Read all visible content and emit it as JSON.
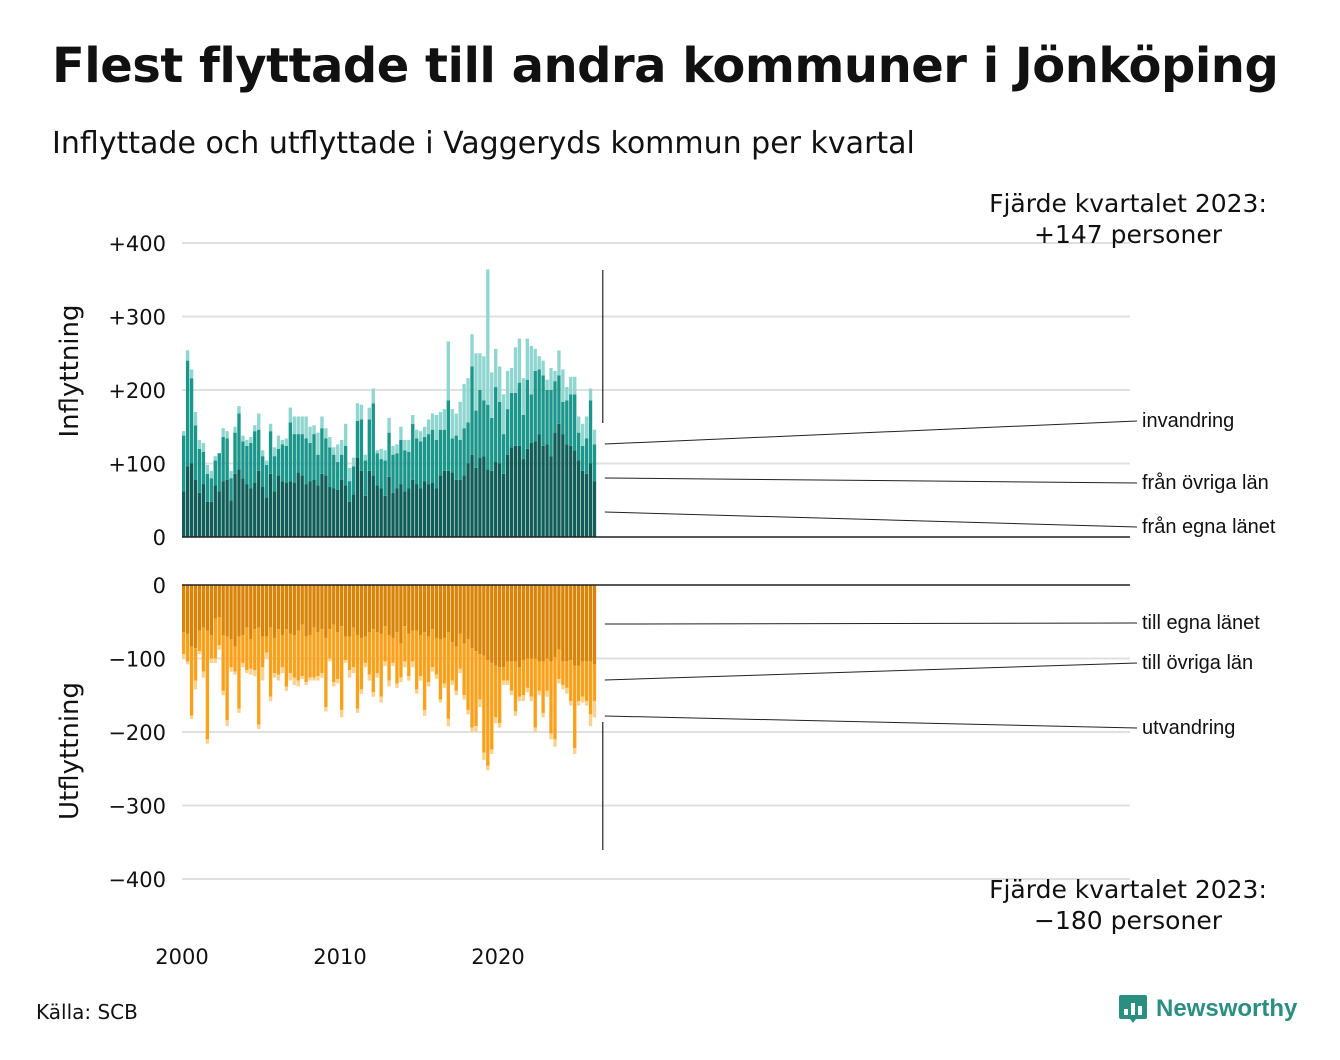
{
  "title": "Flest flyttade till andra kommuner i Jönköping",
  "subtitle": "Inflyttade och utflyttade i Vaggeryds kommun per kvartal",
  "source": "Källa: SCB",
  "brand": "Newsworthy",
  "colors": {
    "in_egna": "#115e59",
    "in_ovriga": "#1a968a",
    "in_invandring": "#8ed6cf",
    "ut_egna": "#d98406",
    "ut_ovriga": "#f9a11b",
    "ut_utvandring": "#fbd28d",
    "grid": "#e0e0e0",
    "brand": "#2a8f80"
  },
  "chart_data": {
    "type": "bar",
    "stacked": true,
    "x_start": 2000.0,
    "x_step": 0.25,
    "x_ticks": [
      "2000",
      "2010",
      "2020"
    ],
    "upper": {
      "ylabel": "Inflyttning",
      "ylim": [
        0,
        400
      ],
      "ticks": [
        "0",
        "+100",
        "+200",
        "+300",
        "+400"
      ],
      "series": [
        {
          "name": "från egna länet",
          "values": [
            62,
            96,
            100,
            78,
            60,
            72,
            48,
            48,
            70,
            62,
            76,
            78,
            50,
            86,
            92,
            80,
            72,
            66,
            74,
            90,
            68,
            54,
            86,
            62,
            84,
            76,
            74,
            76,
            74,
            88,
            84,
            72,
            76,
            78,
            70,
            86,
            84,
            68,
            66,
            64,
            78,
            70,
            48,
            58,
            108,
            90,
            56,
            90,
            84,
            70,
            66,
            56,
            82,
            60,
            66,
            72,
            62,
            66,
            78,
            72,
            66,
            76,
            72,
            74,
            66,
            84,
            90,
            90,
            88,
            78,
            78,
            84,
            100,
            112,
            94,
            108,
            110,
            92,
            90,
            102,
            100,
            86,
            112,
            122,
            124,
            124,
            106,
            120,
            128,
            130,
            140,
            124,
            126,
            110,
            142,
            154,
            140,
            126,
            124,
            118,
            104,
            90,
            86,
            100,
            76
          ]
        },
        {
          "name": "från övriga län",
          "values": [
            76,
            144,
            116,
            74,
            60,
            44,
            38,
            32,
            34,
            52,
            60,
            56,
            30,
            56,
            76,
            50,
            52,
            62,
            70,
            56,
            42,
            44,
            58,
            48,
            36,
            50,
            50,
            80,
            66,
            52,
            56,
            62,
            52,
            62,
            42,
            62,
            50,
            54,
            46,
            38,
            34,
            54,
            28,
            38,
            50,
            70,
            48,
            70,
            98,
            44,
            40,
            48,
            60,
            52,
            48,
            60,
            56,
            50,
            76,
            62,
            64,
            60,
            68,
            72,
            66,
            62,
            56,
            96,
            46,
            60,
            54,
            64,
            56,
            120,
            78,
            92,
            76,
            88,
            72,
            102,
            84,
            54,
            62,
            74,
            72,
            86,
            60,
            94,
            66,
            96,
            88,
            96,
            74,
            90,
            70,
            66,
            44,
            60,
            70,
            76,
            38,
            34,
            48,
            86,
            50
          ]
        },
        {
          "name": "invandring",
          "values": [
            6,
            14,
            12,
            18,
            12,
            12,
            12,
            10,
            6,
            0,
            12,
            10,
            10,
            8,
            10,
            8,
            8,
            8,
            8,
            22,
            8,
            6,
            10,
            12,
            18,
            6,
            10,
            20,
            24,
            24,
            24,
            30,
            22,
            12,
            30,
            16,
            14,
            14,
            10,
            24,
            20,
            30,
            18,
            12,
            24,
            20,
            8,
            16,
            20,
            4,
            14,
            14,
            20,
            12,
            12,
            18,
            14,
            16,
            12,
            12,
            14,
            14,
            20,
            22,
            34,
            24,
            28,
            80,
            40,
            30,
            52,
            60,
            60,
            44,
            78,
            50,
            60,
            184,
            62,
            52,
            48,
            54,
            52,
            34,
            62,
            60,
            50,
            56,
            66,
            30,
            18,
            20,
            14,
            30,
            14,
            34,
            44,
            18,
            24,
            24,
            22,
            30,
            30,
            16,
            20
          ]
        }
      ]
    },
    "lower": {
      "ylabel": "Utflyttning",
      "ylim": [
        -400,
        0
      ],
      "ticks": [
        "0",
        "−100",
        "−200",
        "−300",
        "−400"
      ],
      "series": [
        {
          "name": "till egna länet",
          "values": [
            -64,
            -66,
            -84,
            -86,
            -62,
            -58,
            -62,
            -68,
            -46,
            -44,
            -68,
            -70,
            -74,
            -84,
            -70,
            -68,
            -58,
            -74,
            -60,
            -58,
            -70,
            -70,
            -58,
            -72,
            -60,
            -68,
            -60,
            -66,
            -68,
            -62,
            -54,
            -70,
            -68,
            -58,
            -64,
            -60,
            -72,
            -60,
            -54,
            -64,
            -56,
            -70,
            -70,
            -58,
            -68,
            -72,
            -70,
            -64,
            -60,
            -64,
            -66,
            -56,
            -68,
            -72,
            -64,
            -80,
            -56,
            -66,
            -62,
            -62,
            -68,
            -64,
            -70,
            -60,
            -72,
            -74,
            -72,
            -64,
            -78,
            -84,
            -66,
            -80,
            -74,
            -86,
            -90,
            -94,
            -96,
            -102,
            -106,
            -110,
            -112,
            -112,
            -104,
            -104,
            -104,
            -112,
            -102,
            -100,
            -100,
            -100,
            -104,
            -104,
            -100,
            -104,
            -98,
            -88,
            -104,
            -104,
            -102,
            -110,
            -110,
            -104,
            -104,
            -104,
            -108
          ]
        },
        {
          "name": "till övriga län",
          "values": [
            -30,
            -38,
            -94,
            -44,
            -28,
            -60,
            -148,
            -32,
            -54,
            -38,
            -76,
            -114,
            -38,
            -34,
            -98,
            -38,
            -58,
            -40,
            -56,
            -132,
            -42,
            -22,
            -94,
            -48,
            -62,
            -44,
            -78,
            -54,
            -58,
            -68,
            -70,
            -62,
            -58,
            -68,
            -60,
            -60,
            -94,
            -40,
            -78,
            -64,
            -114,
            -32,
            -46,
            -54,
            -100,
            -70,
            -36,
            -58,
            -86,
            -56,
            -86,
            -48,
            -62,
            -34,
            -70,
            -46,
            -48,
            -58,
            -42,
            -80,
            -56,
            -106,
            -62,
            -52,
            -50,
            -82,
            -62,
            -118,
            -52,
            -60,
            -48,
            -70,
            -96,
            -108,
            -102,
            -62,
            -132,
            -144,
            -118,
            -70,
            -76,
            -18,
            -26,
            -40,
            -68,
            -40,
            -48,
            -40,
            -52,
            -94,
            -40,
            -70,
            -44,
            -98,
            -112,
            -40,
            -32,
            -36,
            -56,
            -112,
            -48,
            -48,
            -54,
            -72,
            -50
          ]
        },
        {
          "name": "utvandring",
          "values": [
            -6,
            -4,
            -4,
            -12,
            -4,
            -8,
            -6,
            -6,
            -6,
            -6,
            -6,
            -8,
            -6,
            -4,
            -6,
            -6,
            -4,
            -8,
            -8,
            -6,
            -18,
            -8,
            -6,
            -6,
            -8,
            -8,
            -6,
            -10,
            -10,
            -8,
            -4,
            -4,
            -4,
            -4,
            -6,
            -6,
            -6,
            -4,
            -6,
            -6,
            -10,
            -4,
            -10,
            -8,
            -6,
            -6,
            -6,
            -8,
            -6,
            -6,
            -8,
            -6,
            -8,
            -4,
            -6,
            -6,
            -8,
            -6,
            -8,
            -6,
            -6,
            -8,
            -6,
            -6,
            -6,
            -4,
            -6,
            -10,
            -6,
            -6,
            -6,
            -6,
            -6,
            -6,
            -8,
            -10,
            -10,
            -6,
            -6,
            -8,
            -6,
            -6,
            -6,
            -6,
            -6,
            -6,
            -8,
            -6,
            -6,
            -6,
            -6,
            -6,
            -8,
            -8,
            -10,
            -6,
            -6,
            -8,
            -6,
            -8,
            -6,
            -8,
            -6,
            -16,
            -22
          ]
        }
      ]
    },
    "in_labels": [
      "invandring",
      "från övriga län",
      "från egna länet"
    ],
    "out_labels": [
      "till egna länet",
      "till övriga län",
      "utvandring"
    ],
    "annotation_top": [
      "Fjärde kvartalet 2023:",
      "+147 personer"
    ],
    "annotation_bottom": [
      "Fjärde kvartalet 2023:",
      "−180 personer"
    ]
  }
}
